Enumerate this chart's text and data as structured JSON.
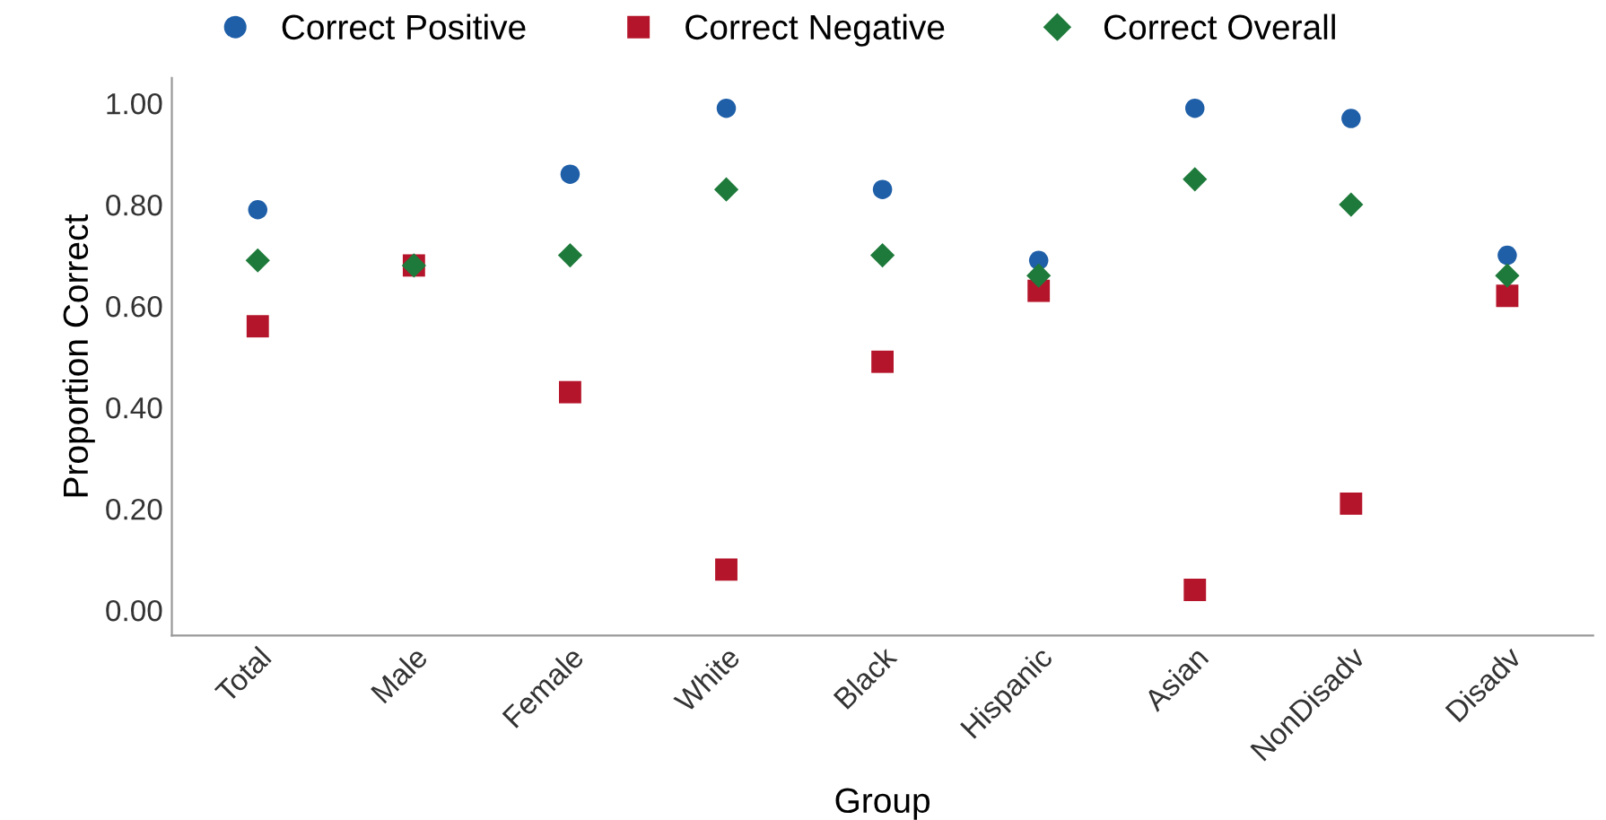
{
  "chart_data": {
    "type": "scatter",
    "xlabel": "Group",
    "ylabel": "Proportion Correct",
    "categories": [
      "Total",
      "Male",
      "Female",
      "White",
      "Black",
      "Hispanic",
      "Asian",
      "NonDisadv",
      "Disadv"
    ],
    "series": [
      {
        "name": "Correct Positive",
        "color": "#1f5fa8",
        "marker": "circle",
        "values": [
          0.79,
          null,
          0.86,
          0.99,
          0.83,
          0.69,
          0.99,
          0.97,
          0.7
        ]
      },
      {
        "name": "Correct Negative",
        "color": "#b5152b",
        "marker": "square",
        "values": [
          0.56,
          0.68,
          0.43,
          0.08,
          0.49,
          0.63,
          0.04,
          0.21,
          0.62
        ]
      },
      {
        "name": "Correct Overall",
        "color": "#1e7a3a",
        "marker": "diamond",
        "values": [
          0.69,
          0.68,
          0.7,
          0.83,
          0.7,
          0.66,
          0.85,
          0.8,
          0.66
        ]
      }
    ],
    "ylim": [
      -0.05,
      1.05
    ],
    "yticks": [
      {
        "value": 0,
        "label": "0.00"
      },
      {
        "value": 0.2,
        "label": "0.20"
      },
      {
        "value": 0.4,
        "label": "0.40"
      },
      {
        "value": 0.6,
        "label": "0.60"
      },
      {
        "value": 0.8,
        "label": "0.80"
      },
      {
        "value": 1,
        "label": "1.00"
      }
    ],
    "grid": false,
    "legend": "top"
  }
}
